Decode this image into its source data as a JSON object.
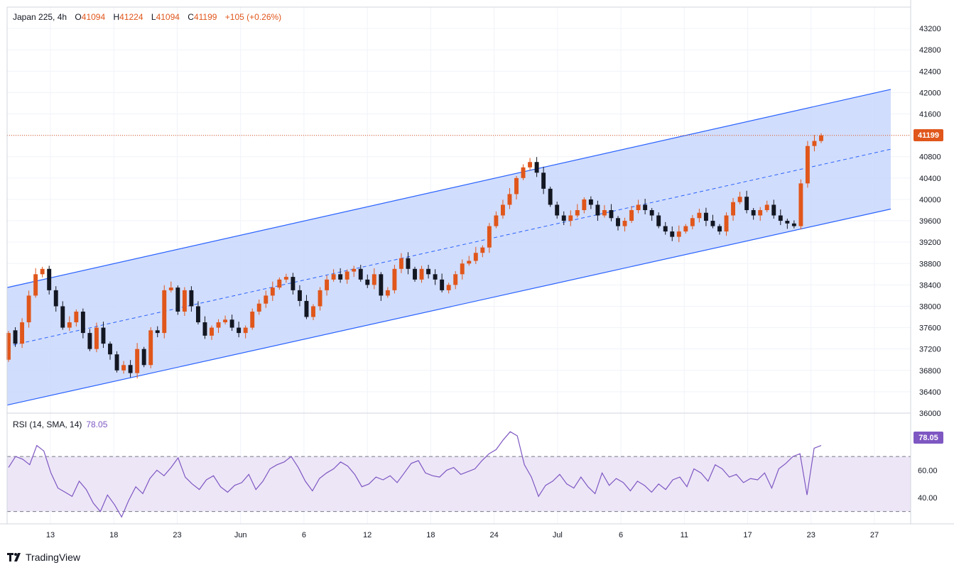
{
  "header": {
    "symbol": "Japan 225, 4h",
    "open_label": "O",
    "open": "41094",
    "high_label": "H",
    "high": "41224",
    "low_label": "L",
    "low": "41094",
    "close_label": "C",
    "close": "41199",
    "change": "+105 (+0.26%)"
  },
  "rsi_panel": {
    "label": "RSI (14, SMA, 14)",
    "value": "78.05"
  },
  "branding": "TradingView",
  "colors": {
    "up": "#e0561b",
    "down": "#131722",
    "channel_line": "#2962ff",
    "channel_fill": "#c9d7fb",
    "rsi_line": "#7e57c2",
    "rsi_fill": "#ede6f7"
  },
  "chart_data": {
    "type": "candlestick",
    "timeframe": "4h",
    "price_axis": {
      "ticks": [
        "43200",
        "42800",
        "42400",
        "42000",
        "41600",
        "41200",
        "40800",
        "40400",
        "40000",
        "39600",
        "39200",
        "38800",
        "38400",
        "38000",
        "37600",
        "37200",
        "36800",
        "36400",
        "36000"
      ],
      "range": [
        36000,
        43600
      ]
    },
    "rsi_axis": {
      "ticks": [
        "60.00",
        "40.00"
      ],
      "range": [
        21,
        101
      ],
      "levels": [
        70,
        30
      ]
    },
    "x_ticks": [
      "13",
      "18",
      "23",
      "Jun",
      "6",
      "12",
      "18",
      "24",
      "Jul",
      "6",
      "11",
      "17",
      "23",
      "27"
    ],
    "last_price": "41199",
    "last_rsi": "78.05",
    "channel": {
      "upper": {
        "start": 38350,
        "end": 42060
      },
      "middle": {
        "start": 37250,
        "end": 40940
      },
      "lower": {
        "start": 36150,
        "end": 39820
      }
    },
    "series": [
      {
        "name": "Japan 225",
        "close_path": [
          [
            37000,
            37500
          ],
          [
            37550,
            37300
          ],
          [
            37300,
            37700
          ],
          [
            37700,
            38200
          ],
          [
            38200,
            38600
          ],
          [
            38600,
            38700
          ],
          [
            38700,
            38300
          ],
          [
            38300,
            38000
          ],
          [
            38000,
            37600
          ],
          [
            37600,
            37700
          ],
          [
            37700,
            37900
          ],
          [
            37900,
            37500
          ],
          [
            37500,
            37200
          ],
          [
            37200,
            37600
          ],
          [
            37600,
            37300
          ],
          [
            37300,
            37100
          ],
          [
            37100,
            36800
          ],
          [
            36800,
            36900
          ],
          [
            36900,
            36750
          ],
          [
            36750,
            37200
          ],
          [
            37200,
            36900
          ],
          [
            36900,
            37550
          ],
          [
            37550,
            37500
          ],
          [
            37500,
            38300
          ],
          [
            38300,
            38350
          ],
          [
            38350,
            37900
          ],
          [
            37900,
            38300
          ],
          [
            38300,
            38000
          ],
          [
            38000,
            37700
          ],
          [
            37700,
            37450
          ],
          [
            37450,
            37600
          ],
          [
            37600,
            37700
          ],
          [
            37700,
            37750
          ],
          [
            37750,
            37600
          ],
          [
            37600,
            37500
          ],
          [
            37500,
            37600
          ],
          [
            37600,
            37900
          ],
          [
            37900,
            38050
          ],
          [
            38050,
            38200
          ],
          [
            38200,
            38350
          ],
          [
            38350,
            38500
          ],
          [
            38500,
            38550
          ],
          [
            38550,
            38300
          ],
          [
            38300,
            38100
          ],
          [
            38100,
            37800
          ],
          [
            37800,
            38000
          ],
          [
            38000,
            38300
          ],
          [
            38300,
            38500
          ],
          [
            38500,
            38600
          ],
          [
            38600,
            38500
          ],
          [
            38500,
            38650
          ],
          [
            38650,
            38700
          ],
          [
            38700,
            38500
          ],
          [
            38500,
            38400
          ],
          [
            38400,
            38600
          ],
          [
            38600,
            38200
          ],
          [
            38200,
            38300
          ],
          [
            38300,
            38700
          ],
          [
            38700,
            38900
          ],
          [
            38900,
            38700
          ],
          [
            38700,
            38500
          ],
          [
            38500,
            38700
          ],
          [
            38700,
            38600
          ],
          [
            38600,
            38500
          ],
          [
            38500,
            38300
          ],
          [
            38300,
            38400
          ],
          [
            38400,
            38600
          ],
          [
            38600,
            38800
          ],
          [
            38800,
            38850
          ],
          [
            38850,
            39000
          ],
          [
            39000,
            39100
          ],
          [
            39100,
            39500
          ],
          [
            39500,
            39700
          ],
          [
            39700,
            39900
          ],
          [
            39900,
            40100
          ],
          [
            40100,
            40400
          ],
          [
            40400,
            40600
          ],
          [
            40600,
            40700
          ],
          [
            40700,
            40500
          ],
          [
            40500,
            40200
          ],
          [
            40200,
            39900
          ],
          [
            39900,
            39700
          ],
          [
            39700,
            39600
          ],
          [
            39600,
            39700
          ],
          [
            39700,
            39800
          ],
          [
            39800,
            40000
          ],
          [
            40000,
            39900
          ],
          [
            39900,
            39700
          ],
          [
            39700,
            39800
          ],
          [
            39800,
            39650
          ],
          [
            39650,
            39500
          ],
          [
            39500,
            39600
          ],
          [
            39600,
            39800
          ],
          [
            39800,
            39900
          ],
          [
            39900,
            39800
          ],
          [
            39800,
            39700
          ],
          [
            39700,
            39500
          ],
          [
            39500,
            39400
          ],
          [
            39400,
            39300
          ],
          [
            39300,
            39400
          ],
          [
            39400,
            39500
          ],
          [
            39500,
            39650
          ],
          [
            39650,
            39750
          ],
          [
            39750,
            39600
          ],
          [
            39600,
            39500
          ],
          [
            39500,
            39400
          ],
          [
            39400,
            39700
          ],
          [
            39700,
            39950
          ],
          [
            39950,
            40050
          ],
          [
            40050,
            39800
          ],
          [
            39800,
            39700
          ],
          [
            39700,
            39800
          ],
          [
            39800,
            39900
          ],
          [
            39900,
            39700
          ],
          [
            39700,
            39600
          ],
          [
            39600,
            39550
          ],
          [
            39550,
            39500
          ],
          [
            39500,
            40300
          ],
          [
            40300,
            41000
          ],
          [
            41000,
            41094
          ],
          [
            41094,
            41199
          ]
        ]
      },
      {
        "name": "RSI",
        "values": [
          62,
          70,
          68,
          64,
          78,
          74,
          58,
          47,
          44,
          41,
          52,
          46,
          36,
          30,
          42,
          35,
          26,
          38,
          48,
          43,
          54,
          60,
          56,
          62,
          69,
          55,
          50,
          46,
          53,
          56,
          48,
          44,
          49,
          51,
          57,
          46,
          52,
          61,
          64,
          66,
          70,
          62,
          52,
          45,
          54,
          58,
          61,
          66,
          63,
          57,
          48,
          50,
          55,
          53,
          56,
          51,
          58,
          65,
          67,
          58,
          56,
          55,
          60,
          62,
          57,
          59,
          61,
          67,
          72,
          75,
          82,
          88,
          85,
          64,
          55,
          41,
          49,
          52,
          57,
          50,
          47,
          55,
          48,
          43,
          58,
          49,
          54,
          51,
          45,
          52,
          49,
          44,
          50,
          46,
          53,
          55,
          48,
          61,
          58,
          52,
          64,
          61,
          55,
          57,
          51,
          54,
          53,
          58,
          47,
          61,
          65,
          70,
          72,
          42,
          76,
          78
        ]
      }
    ]
  }
}
